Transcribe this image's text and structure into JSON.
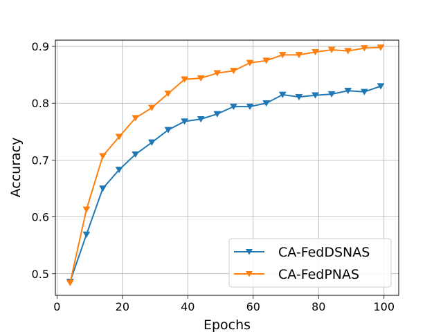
{
  "chart_data": {
    "type": "line",
    "title": "",
    "xlabel": "Epochs",
    "ylabel": "Accuracy",
    "xlim": [
      -0.5,
      104.5
    ],
    "ylim": [
      0.462,
      0.911
    ],
    "xticks": [
      0,
      20,
      40,
      60,
      80,
      100
    ],
    "yticks": [
      0.5,
      0.6,
      0.7,
      0.8,
      0.9
    ],
    "xtick_labels": [
      "0",
      "20",
      "40",
      "60",
      "80",
      "100"
    ],
    "ytick_labels": [
      "0.5",
      "0.6",
      "0.7",
      "0.8",
      "0.9"
    ],
    "grid": true,
    "legend_position": "lower-right",
    "x": [
      4,
      9,
      14,
      19,
      24,
      29,
      34,
      39,
      44,
      49,
      54,
      59,
      64,
      69,
      74,
      79,
      84,
      89,
      94,
      99
    ],
    "series": [
      {
        "name": "CA-FedDSNAS",
        "color": "#1f77b4",
        "marker": "triangle-down",
        "values": [
          0.486,
          0.569,
          0.65,
          0.683,
          0.71,
          0.731,
          0.753,
          0.768,
          0.772,
          0.781,
          0.794,
          0.794,
          0.8,
          0.815,
          0.811,
          0.814,
          0.816,
          0.822,
          0.82,
          0.83
        ]
      },
      {
        "name": "CA-FedPNAS",
        "color": "#ff7f0e",
        "marker": "triangle-down",
        "values": [
          0.484,
          0.613,
          0.707,
          0.741,
          0.774,
          0.792,
          0.817,
          0.842,
          0.844,
          0.853,
          0.857,
          0.871,
          0.875,
          0.885,
          0.885,
          0.89,
          0.894,
          0.892,
          0.897,
          0.898
        ]
      }
    ]
  }
}
